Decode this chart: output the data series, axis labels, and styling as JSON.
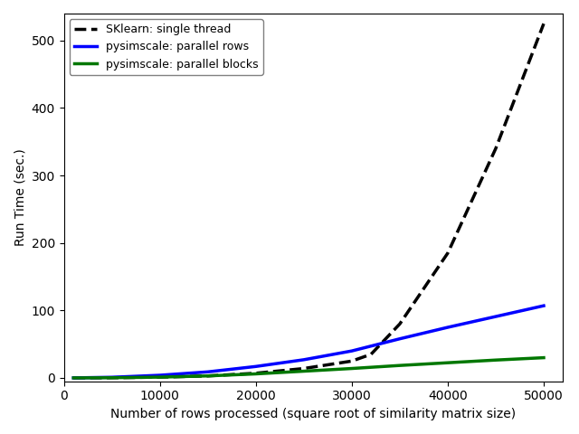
{
  "xlabel": "Number of rows processed (square root of similarity matrix size)",
  "ylabel": "Run Time (sec.)",
  "xlim": [
    0,
    52000
  ],
  "ylim": [
    -5,
    540
  ],
  "x_sklearn": [
    1000,
    5000,
    10000,
    15000,
    20000,
    25000,
    30000,
    32000,
    35000,
    40000,
    45000,
    50000
  ],
  "y_sklearn": [
    0.02,
    0.3,
    1.2,
    3.0,
    7.0,
    14.0,
    25.0,
    35.0,
    80.0,
    185.0,
    340.0,
    525.0
  ],
  "x_rows": [
    1000,
    5000,
    10000,
    15000,
    20000,
    25000,
    30000,
    35000,
    40000,
    45000,
    50000
  ],
  "y_rows": [
    0.1,
    1.0,
    4.0,
    9.0,
    17.0,
    27.0,
    40.0,
    58.0,
    75.0,
    91.0,
    107.0
  ],
  "x_blocks": [
    1000,
    5000,
    10000,
    15000,
    20000,
    25000,
    30000,
    35000,
    40000,
    45000,
    50000
  ],
  "y_blocks": [
    0.05,
    0.3,
    1.2,
    3.0,
    6.0,
    10.0,
    14.0,
    18.5,
    22.5,
    26.5,
    30.0
  ],
  "color_sklearn": "#000000",
  "color_rows": "#0000ff",
  "color_blocks": "#007700",
  "lw": 2.5,
  "legend_sklearn": "SKlearn: single thread",
  "legend_rows": "pysimscale: parallel rows",
  "legend_blocks": "pysimscale: parallel blocks",
  "xticks": [
    0,
    10000,
    20000,
    30000,
    40000,
    50000
  ],
  "yticks": [
    0,
    100,
    200,
    300,
    400,
    500
  ],
  "background_color": "#ffffff",
  "axes_bg_color": "#ffffff"
}
